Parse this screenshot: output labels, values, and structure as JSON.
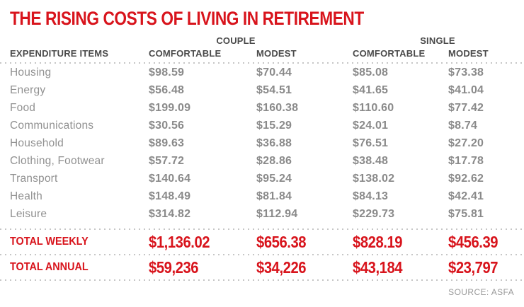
{
  "title": "THE RISING COSTS OF LIVING IN RETIREMENT",
  "colors": {
    "accent_red": "#d8141c",
    "value_gray": "#8a8a8a",
    "header_gray": "#4a4a4a",
    "dotted_line_gray": "#c6c6c6"
  },
  "table": {
    "group_headers": {
      "couple": "COUPLE",
      "single": "SINGLE"
    },
    "column_headers": {
      "items": "EXPENDITURE ITEMS",
      "couple_comfortable": "COMFORTABLE",
      "couple_modest": "MODEST",
      "single_comfortable": "COMFORTABLE",
      "single_modest": "MODEST"
    },
    "rows": [
      {
        "item": "Housing",
        "cc": "$98.59",
        "cm": "$70.44",
        "sc": "$85.08",
        "sm": "$73.38"
      },
      {
        "item": "Energy",
        "cc": "$56.48",
        "cm": "$54.51",
        "sc": "$41.65",
        "sm": "$41.04"
      },
      {
        "item": "Food",
        "cc": "$199.09",
        "cm": "$160.38",
        "sc": "$110.60",
        "sm": "$77.42"
      },
      {
        "item": "Communications",
        "cc": "$30.56",
        "cm": "$15.29",
        "sc": "$24.01",
        "sm": "$8.74"
      },
      {
        "item": "Household",
        "cc": "$89.63",
        "cm": "$36.88",
        "sc": "$76.51",
        "sm": "$27.20"
      },
      {
        "item": "Clothing, Footwear",
        "cc": "$57.72",
        "cm": "$28.86",
        "sc": "$38.48",
        "sm": "$17.78"
      },
      {
        "item": "Transport",
        "cc": "$140.64",
        "cm": "$95.24",
        "sc": "$138.02",
        "sm": "$92.62"
      },
      {
        "item": "Health",
        "cc": "$148.49",
        "cm": "$81.84",
        "sc": "$84.13",
        "sm": "$42.41"
      },
      {
        "item": "Leisure",
        "cc": "$314.82",
        "cm": "$112.94",
        "sc": "$229.73",
        "sm": "$75.81"
      }
    ],
    "totals": [
      {
        "label": "TOTAL WEEKLY",
        "cc": "$1,136.02",
        "cm": "$656.38",
        "sc": "$828.19",
        "sm": "$456.39"
      },
      {
        "label": "TOTAL ANNUAL",
        "cc": "$59,236",
        "cm": "$34,226",
        "sc": "$43,184",
        "sm": "$23,797"
      }
    ]
  },
  "source": "SOURCE: ASFA",
  "chart_data": {
    "type": "table",
    "title": "THE RISING COSTS OF LIVING IN RETIREMENT",
    "columns": [
      "Expenditure items",
      "Couple Comfortable",
      "Couple Modest",
      "Single Comfortable",
      "Single Modest"
    ],
    "rows": [
      [
        "Housing",
        98.59,
        70.44,
        85.08,
        73.38
      ],
      [
        "Energy",
        56.48,
        54.51,
        41.65,
        41.04
      ],
      [
        "Food",
        199.09,
        160.38,
        110.6,
        77.42
      ],
      [
        "Communications",
        30.56,
        15.29,
        24.01,
        8.74
      ],
      [
        "Household",
        89.63,
        36.88,
        76.51,
        27.2
      ],
      [
        "Clothing, Footwear",
        57.72,
        28.86,
        38.48,
        17.78
      ],
      [
        "Transport",
        140.64,
        95.24,
        138.02,
        92.62
      ],
      [
        "Health",
        148.49,
        81.84,
        84.13,
        42.41
      ],
      [
        "Leisure",
        314.82,
        112.94,
        229.73,
        75.81
      ]
    ],
    "totals": {
      "total_weekly": [
        1136.02,
        656.38,
        828.19,
        456.39
      ],
      "total_annual": [
        59236,
        34226,
        43184,
        23797
      ]
    },
    "source": "SOURCE: ASFA"
  }
}
